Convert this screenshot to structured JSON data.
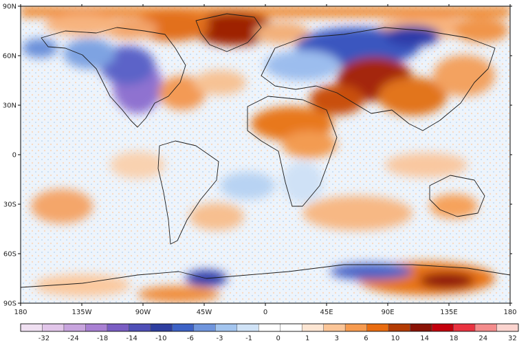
{
  "map": {
    "lon_ticks": [
      {
        "lon": -180,
        "label": "180"
      },
      {
        "lon": -135,
        "label": "135W"
      },
      {
        "lon": -90,
        "label": "90W"
      },
      {
        "lon": -45,
        "label": "45W"
      },
      {
        "lon": 0,
        "label": "0"
      },
      {
        "lon": 45,
        "label": "45E"
      },
      {
        "lon": 90,
        "label": "90E"
      },
      {
        "lon": 135,
        "label": "135E"
      },
      {
        "lon": 180,
        "label": "180"
      }
    ],
    "lat_ticks": [
      {
        "lat": 90,
        "label": "90N"
      },
      {
        "lat": 60,
        "label": "60N"
      },
      {
        "lat": 30,
        "label": "30N"
      },
      {
        "lat": 0,
        "label": "0"
      },
      {
        "lat": -30,
        "label": "30S"
      },
      {
        "lat": -60,
        "label": "60S"
      },
      {
        "lat": -90,
        "label": "90S"
      }
    ],
    "anomaly_regions": [
      {
        "lon": -100,
        "lat": 40,
        "value": -14
      },
      {
        "lon": -95,
        "lat": 55,
        "value": -8
      },
      {
        "lon": -140,
        "lat": 62,
        "value": -4
      },
      {
        "lon": -45,
        "lat": 72,
        "value": 10
      },
      {
        "lon": -75,
        "lat": 75,
        "value": 6
      },
      {
        "lon": -20,
        "lat": 85,
        "value": 6
      },
      {
        "lon": 40,
        "lat": 40,
        "value": 14
      },
      {
        "lon": 65,
        "lat": 45,
        "value": 14
      },
      {
        "lon": 80,
        "lat": 60,
        "value": -10
      },
      {
        "lon": 120,
        "lat": 60,
        "value": 6
      },
      {
        "lon": 10,
        "lat": 15,
        "value": 6
      },
      {
        "lon": 140,
        "lat": -75,
        "value": 10
      },
      {
        "lon": -40,
        "lat": -75,
        "value": -10
      },
      {
        "lon": 140,
        "lat": -25,
        "value": 3
      },
      {
        "lon": -150,
        "lat": -30,
        "value": 3
      },
      {
        "lon": 60,
        "lat": -45,
        "value": 3
      }
    ]
  },
  "colorbar": {
    "colors": [
      "#f0e0f2",
      "#e2c6ea",
      "#c8a4de",
      "#a980d3",
      "#7a5dc3",
      "#4f4fb7",
      "#2e3ea0",
      "#3d62c6",
      "#6f95dd",
      "#a3c5ef",
      "#d0e3f7",
      "#ffffff",
      "#ffffff",
      "#fde6d3",
      "#fbc597",
      "#f79b4f",
      "#e96c10",
      "#b33b03",
      "#8a1306",
      "#c3000c",
      "#ea3340",
      "#f48c8c",
      "#fbd4cf"
    ],
    "labels": [
      {
        "boundary": 1,
        "text": "-32"
      },
      {
        "boundary": 3,
        "text": "-24"
      },
      {
        "boundary": 5,
        "text": "-18"
      },
      {
        "boundary": 7,
        "text": "-14"
      },
      {
        "boundary": 9,
        "text": "-10"
      },
      {
        "boundary": 11,
        "text": "-6"
      },
      {
        "boundary": 13,
        "text": "-3"
      },
      {
        "boundary": 15,
        "text": "-1"
      },
      {
        "boundary": 17,
        "text": "0"
      },
      {
        "boundary": 19,
        "text": "1"
      },
      {
        "boundary": 21,
        "text": "3"
      },
      {
        "boundary": 23,
        "text": "6"
      },
      {
        "boundary": 25,
        "text": "10"
      },
      {
        "boundary": 27,
        "text": "14"
      },
      {
        "boundary": 29,
        "text": "18"
      },
      {
        "boundary": 31,
        "text": "24"
      },
      {
        "boundary": 33,
        "text": "32"
      }
    ]
  }
}
